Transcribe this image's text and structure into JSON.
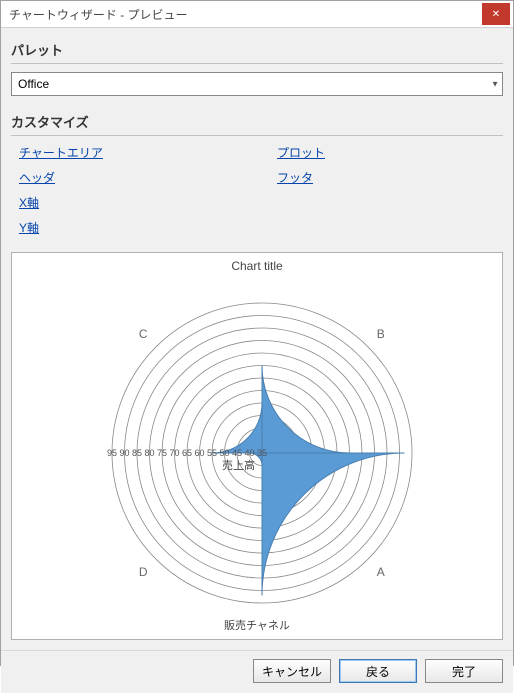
{
  "window": {
    "title": "チャートウィザード - プレビュー"
  },
  "palette": {
    "section_label": "パレット",
    "selected": "Office"
  },
  "customize": {
    "section_label": "カスタマイズ",
    "links_left": [
      "チャートエリア",
      "ヘッダ",
      "X軸",
      "Y軸"
    ],
    "links_right": [
      "プロット",
      "フッタ"
    ]
  },
  "chart": {
    "type": "rose",
    "title": "Chart title",
    "footer": "販売チャネル",
    "axis_label": "売上高",
    "categories": [
      "A",
      "B",
      "C",
      "D"
    ],
    "values": [
      92,
      70,
      55,
      40
    ],
    "angles_deg": [
      135,
      45,
      315,
      225
    ],
    "slice_half_width_deg": 45,
    "slice_color": "#5b9bd5",
    "slice_stroke": "#4a7fb0",
    "ring_color": "#888888",
    "ring_min": 35,
    "ring_max": 95,
    "ring_step": 5,
    "ring_labels": [
      35,
      40,
      45,
      50,
      55,
      60,
      65,
      70,
      75,
      80,
      85,
      90,
      95
    ],
    "background": "#ffffff",
    "title_fontsize": 12,
    "label_fontsize": 11,
    "tick_fontsize": 9,
    "cat_label_color": "#666666"
  },
  "buttons": {
    "cancel": "キャンセル",
    "back": "戻る",
    "finish": "完了"
  }
}
